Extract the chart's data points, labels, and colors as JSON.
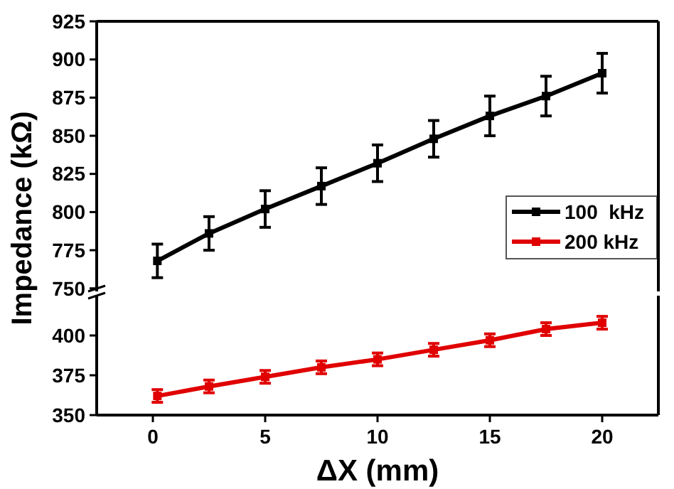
{
  "chart_data": [
    {
      "type": "line",
      "ylabel": "Impedance (kΩ)",
      "x": [
        0.2,
        2.5,
        5,
        7.5,
        10,
        12.5,
        15,
        17.5,
        20
      ],
      "xlim": [
        -2.5,
        22.5
      ],
      "ylim": [
        748,
        925
      ],
      "yticks": [
        750,
        775,
        800,
        825,
        850,
        875,
        900,
        925
      ],
      "tick_labels": "y",
      "legend": "right",
      "marker": "square",
      "grid": false,
      "series": [
        {
          "name": "100  kHz",
          "color": "#000000",
          "values": [
            768,
            786,
            802,
            817,
            832,
            848,
            863,
            876,
            891
          ],
          "errors": [
            11,
            11,
            12,
            12,
            12,
            12,
            13,
            13,
            13
          ]
        }
      ]
    },
    {
      "type": "line",
      "xlabel": "ΔX (mm)",
      "x": [
        0.2,
        2.5,
        5,
        7.5,
        10,
        12.5,
        15,
        17.5,
        20
      ],
      "xlim": [
        -2.5,
        22.5
      ],
      "xticks": [
        0,
        5,
        10,
        15,
        20
      ],
      "ylim": [
        350,
        425
      ],
      "yticks": [
        350,
        375,
        400
      ],
      "legend": "right",
      "marker": "square",
      "grid": false,
      "series": [
        {
          "name": "200 kHz",
          "color": "#e00000",
          "values": [
            362,
            368,
            374,
            380,
            385,
            391,
            397,
            404,
            408
          ],
          "errors": [
            4,
            4,
            4,
            4,
            4,
            4,
            4,
            4,
            4
          ]
        }
      ]
    }
  ]
}
